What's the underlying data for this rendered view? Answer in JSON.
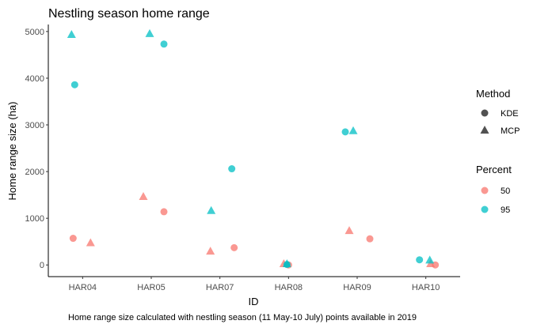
{
  "chart_data": {
    "type": "scatter",
    "title": "Nestling season home range",
    "xlabel": "ID",
    "ylabel": "Home range size (ha)",
    "caption": "Home range size calculated with nestling season (11 May-10 July) points available in 2019",
    "categories": [
      "HAR04",
      "HAR05",
      "HAR07",
      "HAR08",
      "HAR09",
      "HAR10"
    ],
    "yticks": [
      "0",
      "1000",
      "2000",
      "3000",
      "4000",
      "5000"
    ],
    "ylim": [
      -250,
      5150
    ],
    "grid": false,
    "legend_position": "right",
    "legend": {
      "method_title": "Method",
      "method_items": [
        {
          "label": "KDE",
          "shape": "circle"
        },
        {
          "label": "MCP",
          "shape": "triangle"
        }
      ],
      "percent_title": "Percent",
      "percent_items": [
        {
          "label": "50",
          "color": "#F8766D"
        },
        {
          "label": "95",
          "color": "#00BFC4"
        }
      ]
    },
    "series": [
      {
        "method": "KDE",
        "percent": "50",
        "color": "#F8766D",
        "shape": "circle",
        "points": [
          {
            "x": "HAR04",
            "y": 570
          },
          {
            "x": "HAR05",
            "y": 1140
          },
          {
            "x": "HAR07",
            "y": 370
          },
          {
            "x": "HAR08",
            "y": 0
          },
          {
            "x": "HAR09",
            "y": 560
          },
          {
            "x": "HAR10",
            "y": 0
          }
        ]
      },
      {
        "method": "MCP",
        "percent": "50",
        "color": "#F8766D",
        "shape": "triangle",
        "points": [
          {
            "x": "HAR04",
            "y": 470
          },
          {
            "x": "HAR05",
            "y": 1460
          },
          {
            "x": "HAR07",
            "y": 290
          },
          {
            "x": "HAR08",
            "y": 20
          },
          {
            "x": "HAR09",
            "y": 730
          },
          {
            "x": "HAR10",
            "y": 20
          }
        ]
      },
      {
        "method": "KDE",
        "percent": "95",
        "color": "#00BFC4",
        "shape": "circle",
        "points": [
          {
            "x": "HAR04",
            "y": 3860
          },
          {
            "x": "HAR05",
            "y": 4730
          },
          {
            "x": "HAR07",
            "y": 2060
          },
          {
            "x": "HAR08",
            "y": 10
          },
          {
            "x": "HAR09",
            "y": 2850
          },
          {
            "x": "HAR10",
            "y": 110
          }
        ]
      },
      {
        "method": "MCP",
        "percent": "95",
        "color": "#00BFC4",
        "shape": "triangle",
        "points": [
          {
            "x": "HAR04",
            "y": 4930
          },
          {
            "x": "HAR05",
            "y": 4950
          },
          {
            "x": "HAR07",
            "y": 1160
          },
          {
            "x": "HAR08",
            "y": 20
          },
          {
            "x": "HAR09",
            "y": 2870
          },
          {
            "x": "HAR10",
            "y": 100
          }
        ]
      }
    ]
  }
}
